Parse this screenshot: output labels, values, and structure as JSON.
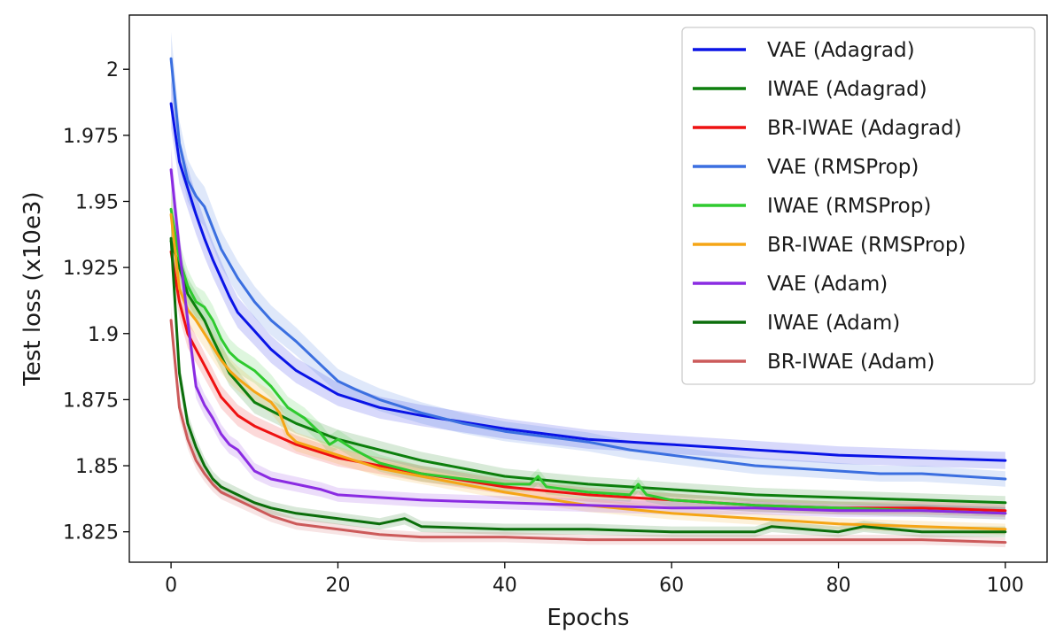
{
  "chart_data": {
    "type": "line",
    "xlabel": "Epochs",
    "ylabel": "Test loss (x10e3)",
    "xlim": [
      -5,
      105
    ],
    "ylim": [
      1.8135,
      2.0205
    ],
    "x_ticks": [
      0,
      20,
      40,
      60,
      80,
      100
    ],
    "y_ticks": [
      1.825,
      1.85,
      1.875,
      1.9,
      1.925,
      1.95,
      1.975,
      2
    ],
    "x_tick_labels": [
      "0",
      "20",
      "40",
      "60",
      "80",
      "100"
    ],
    "y_tick_labels": [
      "1.825",
      "1.85",
      "1.875",
      "1.9",
      "1.925",
      "1.95",
      "1.975",
      "2"
    ],
    "legend_position": "top-right",
    "grid": false,
    "series": [
      {
        "name": "VAE (Adagrad)",
        "color": "#0a14e6",
        "x": [
          0,
          1,
          2,
          3,
          4,
          5,
          6,
          7,
          8,
          10,
          12,
          15,
          20,
          25,
          30,
          40,
          50,
          60,
          70,
          80,
          90,
          100
        ],
        "y": [
          1.987,
          1.965,
          1.955,
          1.945,
          1.936,
          1.928,
          1.921,
          1.914,
          1.908,
          1.901,
          1.894,
          1.886,
          1.877,
          1.872,
          1.869,
          1.864,
          1.86,
          1.858,
          1.856,
          1.854,
          1.853,
          1.852
        ]
      },
      {
        "name": "IWAE (Adagrad)",
        "color": "#0d7f0d",
        "x": [
          0,
          1,
          2,
          3,
          4,
          5,
          7,
          10,
          15,
          20,
          30,
          40,
          50,
          60,
          70,
          80,
          90,
          100
        ],
        "y": [
          1.935,
          1.925,
          1.915,
          1.91,
          1.905,
          1.898,
          1.885,
          1.874,
          1.866,
          1.86,
          1.852,
          1.846,
          1.843,
          1.841,
          1.839,
          1.838,
          1.837,
          1.836
        ]
      },
      {
        "name": "BR-IWAE (Adagrad)",
        "color": "#ee1111",
        "x": [
          0,
          1,
          2,
          3,
          4,
          5,
          6,
          8,
          10,
          15,
          20,
          30,
          40,
          50,
          60,
          70,
          80,
          90,
          100
        ],
        "y": [
          1.931,
          1.912,
          1.9,
          1.894,
          1.888,
          1.882,
          1.876,
          1.869,
          1.865,
          1.858,
          1.853,
          1.847,
          1.842,
          1.839,
          1.837,
          1.835,
          1.834,
          1.834,
          1.833
        ]
      },
      {
        "name": "VAE (RMSProp)",
        "color": "#3b6fe0",
        "x": [
          0,
          1,
          2,
          3,
          4,
          5,
          6,
          8,
          10,
          12,
          15,
          18,
          20,
          22,
          25,
          30,
          35,
          40,
          45,
          50,
          55,
          60,
          65,
          70,
          75,
          80,
          85,
          90,
          95,
          100
        ],
        "y": [
          2.004,
          1.972,
          1.958,
          1.952,
          1.948,
          1.94,
          1.932,
          1.921,
          1.912,
          1.905,
          1.897,
          1.888,
          1.882,
          1.879,
          1.875,
          1.87,
          1.866,
          1.863,
          1.861,
          1.859,
          1.856,
          1.854,
          1.852,
          1.85,
          1.849,
          1.848,
          1.847,
          1.847,
          1.846,
          1.845
        ]
      },
      {
        "name": "IWAE (RMSProp)",
        "color": "#2fca2f",
        "x": [
          0,
          1,
          2,
          3,
          4,
          5,
          6,
          7,
          8,
          10,
          12,
          14,
          16,
          18,
          19,
          20,
          22,
          25,
          30,
          35,
          40,
          43,
          44,
          45,
          50,
          55,
          56,
          57,
          60,
          65,
          70,
          80,
          90,
          100
        ],
        "y": [
          1.947,
          1.928,
          1.918,
          1.912,
          1.91,
          1.905,
          1.898,
          1.893,
          1.89,
          1.886,
          1.88,
          1.872,
          1.868,
          1.862,
          1.858,
          1.86,
          1.856,
          1.851,
          1.847,
          1.845,
          1.843,
          1.843,
          1.846,
          1.842,
          1.84,
          1.839,
          1.843,
          1.839,
          1.837,
          1.836,
          1.835,
          1.834,
          1.833,
          1.832
        ]
      },
      {
        "name": "BR-IWAE (RMSProp)",
        "color": "#f5a516",
        "x": [
          0,
          1,
          2,
          3,
          4,
          5,
          6,
          7,
          8,
          10,
          12,
          13,
          14,
          15,
          20,
          25,
          30,
          40,
          50,
          60,
          70,
          80,
          90,
          100
        ],
        "y": [
          1.945,
          1.917,
          1.909,
          1.905,
          1.9,
          1.895,
          1.89,
          1.886,
          1.883,
          1.878,
          1.874,
          1.87,
          1.862,
          1.859,
          1.854,
          1.849,
          1.846,
          1.84,
          1.835,
          1.832,
          1.83,
          1.828,
          1.827,
          1.826
        ]
      },
      {
        "name": "VAE (Adam)",
        "color": "#8a2be2",
        "x": [
          0,
          1,
          2,
          3,
          4,
          5,
          6,
          7,
          8,
          9,
          10,
          12,
          15,
          18,
          20,
          25,
          30,
          40,
          50,
          60,
          70,
          80,
          90,
          100
        ],
        "y": [
          1.962,
          1.932,
          1.905,
          1.88,
          1.873,
          1.868,
          1.862,
          1.858,
          1.856,
          1.852,
          1.848,
          1.845,
          1.843,
          1.841,
          1.839,
          1.838,
          1.837,
          1.836,
          1.835,
          1.834,
          1.834,
          1.833,
          1.833,
          1.832
        ]
      },
      {
        "name": "IWAE (Adam)",
        "color": "#0b6e0b",
        "x": [
          0,
          1,
          2,
          3,
          4,
          5,
          6,
          8,
          10,
          12,
          15,
          20,
          25,
          28,
          30,
          40,
          50,
          60,
          70,
          72,
          80,
          83,
          90,
          100
        ],
        "y": [
          1.936,
          1.885,
          1.866,
          1.857,
          1.85,
          1.845,
          1.842,
          1.839,
          1.836,
          1.834,
          1.832,
          1.83,
          1.828,
          1.83,
          1.827,
          1.826,
          1.826,
          1.825,
          1.825,
          1.827,
          1.825,
          1.827,
          1.825,
          1.825
        ]
      },
      {
        "name": "BR-IWAE (Adam)",
        "color": "#cc5a5a",
        "x": [
          0,
          1,
          2,
          3,
          4,
          5,
          6,
          8,
          10,
          12,
          15,
          20,
          25,
          30,
          40,
          50,
          60,
          70,
          80,
          90,
          100
        ],
        "y": [
          1.905,
          1.872,
          1.86,
          1.852,
          1.847,
          1.843,
          1.84,
          1.837,
          1.834,
          1.831,
          1.828,
          1.826,
          1.824,
          1.823,
          1.823,
          1.822,
          1.822,
          1.822,
          1.822,
          1.822,
          1.821
        ]
      }
    ]
  }
}
